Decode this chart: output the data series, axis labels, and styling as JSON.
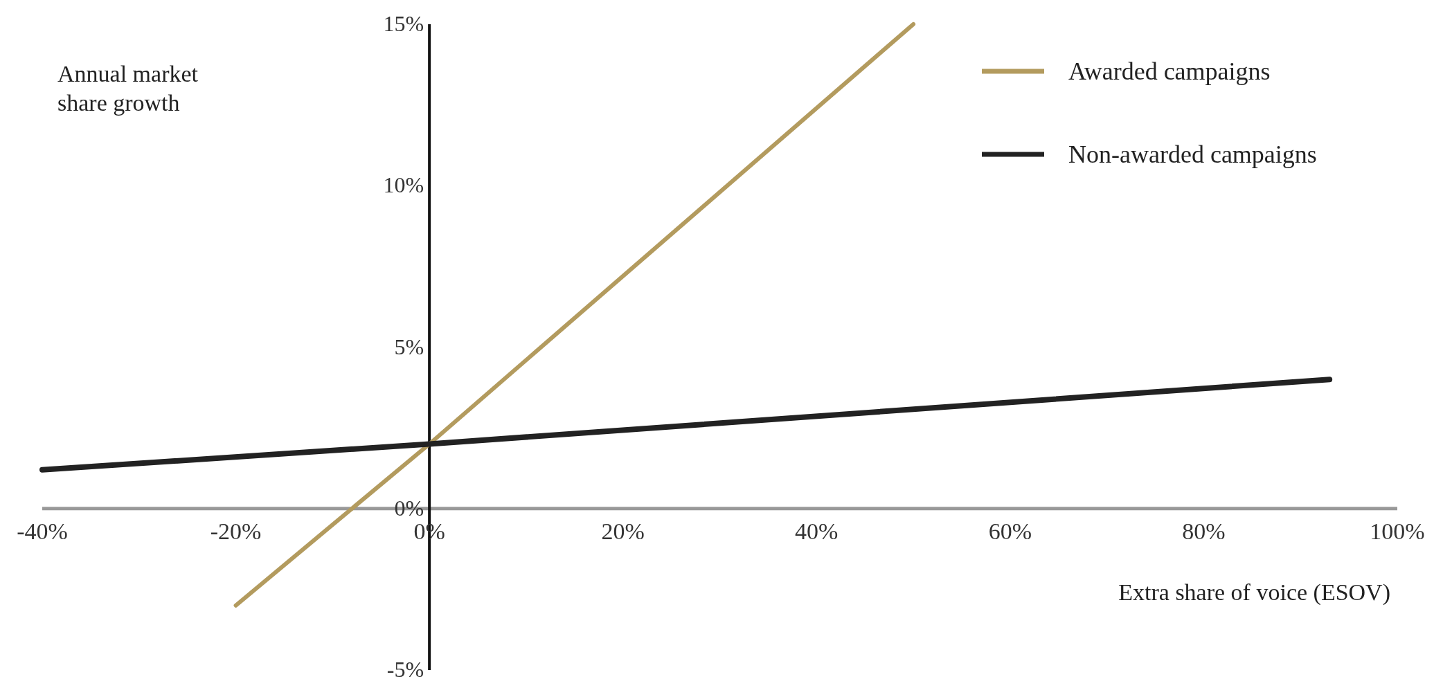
{
  "chart_data": {
    "type": "line",
    "ylabel": "Annual market share growth",
    "xlabel": "Extra share of voice (ESOV)",
    "xlim": [
      -40,
      100
    ],
    "xticks": [
      {
        "value": -40,
        "label": "-40%"
      },
      {
        "value": -20,
        "label": "-20%"
      },
      {
        "value": 0,
        "label": "0%"
      },
      {
        "value": 20,
        "label": "20%"
      },
      {
        "value": 40,
        "label": "40%"
      },
      {
        "value": 60,
        "label": "60%"
      },
      {
        "value": 80,
        "label": "80%"
      },
      {
        "value": 100,
        "label": "100%"
      }
    ],
    "ylim": [
      -5,
      15
    ],
    "yticks": [
      {
        "value": -5,
        "label": "-5%"
      },
      {
        "value": 0,
        "label": "0%"
      },
      {
        "value": 5,
        "label": "5%"
      },
      {
        "value": 10,
        "label": "10%"
      },
      {
        "value": 15,
        "label": "15%"
      }
    ],
    "series": [
      {
        "name": "Awarded campaigns",
        "color": "#b39b5e",
        "x": [
          -20,
          0,
          50
        ],
        "values": [
          -3,
          2,
          15
        ]
      },
      {
        "name": "Non-awarded campaigns",
        "color": "#222222",
        "x": [
          -40,
          0,
          93
        ],
        "values": [
          1.2,
          2,
          4
        ]
      }
    ],
    "legend": "top right",
    "grid": false
  }
}
